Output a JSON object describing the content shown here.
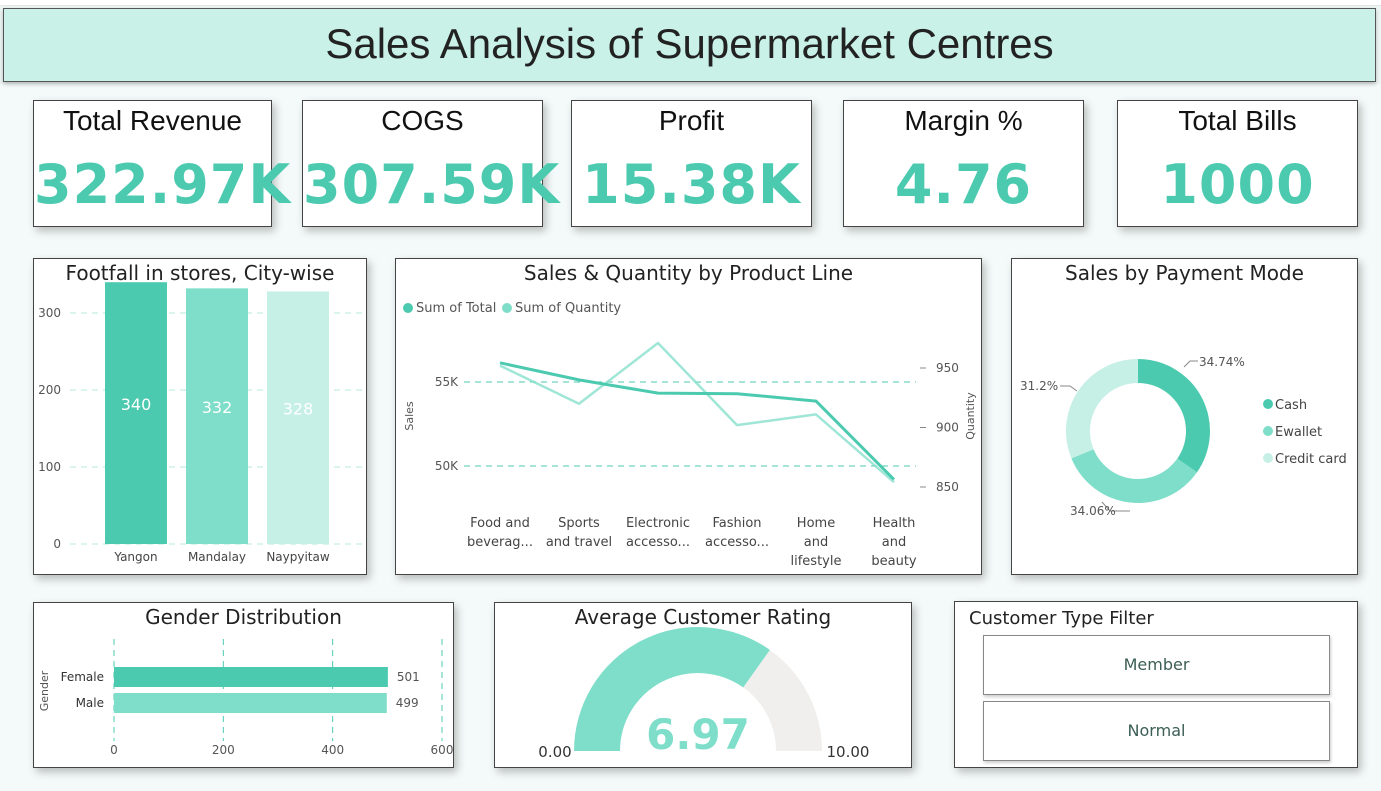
{
  "page_title": "Sales Analysis of Supermarket Centres",
  "colors": {
    "accent": "#4ccab0",
    "accent_mid": "#7fdec9",
    "accent_light": "#c6f0e6",
    "gauge_bg": "#f0efee",
    "header_bg": "#c9f1e8"
  },
  "kpis": [
    {
      "label": "Total Revenue",
      "value": "322.97K"
    },
    {
      "label": "COGS",
      "value": "307.59K"
    },
    {
      "label": "Profit",
      "value": "15.38K"
    },
    {
      "label": "Margin %",
      "value": "4.76"
    },
    {
      "label": "Total Bills",
      "value": "1000"
    }
  ],
  "chart_data": [
    {
      "id": "footfall",
      "type": "bar",
      "title": "Footfall in stores, City-wise",
      "categories": [
        "Yangon",
        "Mandalay",
        "Naypyitaw"
      ],
      "values": [
        340,
        332,
        328
      ],
      "data_labels": [
        "340",
        "332",
        "328"
      ],
      "y_ticks": [
        "0",
        "100",
        "200",
        "300"
      ],
      "ylim": [
        0,
        340
      ],
      "grid": true
    },
    {
      "id": "product_line",
      "type": "line",
      "title": "Sales & Quantity by Product Line",
      "categories": [
        "Food and beverag...",
        "Sports and travel",
        "Electronic accesso...",
        "Fashion accesso...",
        "Home and lifestyle",
        "Health and beauty"
      ],
      "category_lines": [
        [
          "Food and",
          "beverag..."
        ],
        [
          "Sports",
          "and travel"
        ],
        [
          "Electronic",
          "accesso..."
        ],
        [
          "Fashion",
          "accesso..."
        ],
        [
          "Home",
          "and",
          "lifestyle"
        ],
        [
          "Health",
          "and",
          "beauty"
        ]
      ],
      "ylabel": "Sales",
      "y2label": "Quantity",
      "y_ticks": [
        "50K",
        "55K"
      ],
      "y2_ticks": [
        "850",
        "900",
        "950"
      ],
      "ylim": [
        46000,
        59000
      ],
      "y2lim": [
        820,
        990
      ],
      "legend": [
        "Sum of Total",
        "Sum of Quantity"
      ],
      "legend_position": "top-left",
      "series": [
        {
          "name": "Sum of Total",
          "axis": "left",
          "values": [
            56145,
            55123,
            54338,
            54306,
            53862,
            49194
          ]
        },
        {
          "name": "Sum of Quantity",
          "axis": "right",
          "values": [
            952,
            920,
            971,
            902,
            911,
            854
          ]
        }
      ]
    },
    {
      "id": "payment",
      "type": "pie",
      "title": "Sales by Payment Mode",
      "labels": [
        "Cash",
        "Ewallet",
        "Credit card"
      ],
      "values": [
        34.74,
        34.06,
        31.2
      ],
      "data_labels": [
        "34.74%",
        "34.06%",
        "31.2%"
      ],
      "legend_position": "right"
    },
    {
      "id": "gender",
      "type": "bar",
      "orientation": "horizontal",
      "title": "Gender Distribution",
      "ylabel": "Gender",
      "categories": [
        "Female",
        "Male"
      ],
      "values": [
        501,
        499
      ],
      "data_labels": [
        "501",
        "499"
      ],
      "x_ticks": [
        "0",
        "200",
        "400",
        "600"
      ],
      "xlim": [
        0,
        600
      ]
    },
    {
      "id": "rating",
      "type": "gauge",
      "title": "Average Customer Rating",
      "value": 6.97,
      "value_label": "6.97",
      "min_label": "0.00",
      "max_label": "10.00",
      "range": [
        0,
        10
      ]
    }
  ],
  "slicer": {
    "title": "Customer Type Filter",
    "options": [
      "Member",
      "Normal"
    ]
  }
}
